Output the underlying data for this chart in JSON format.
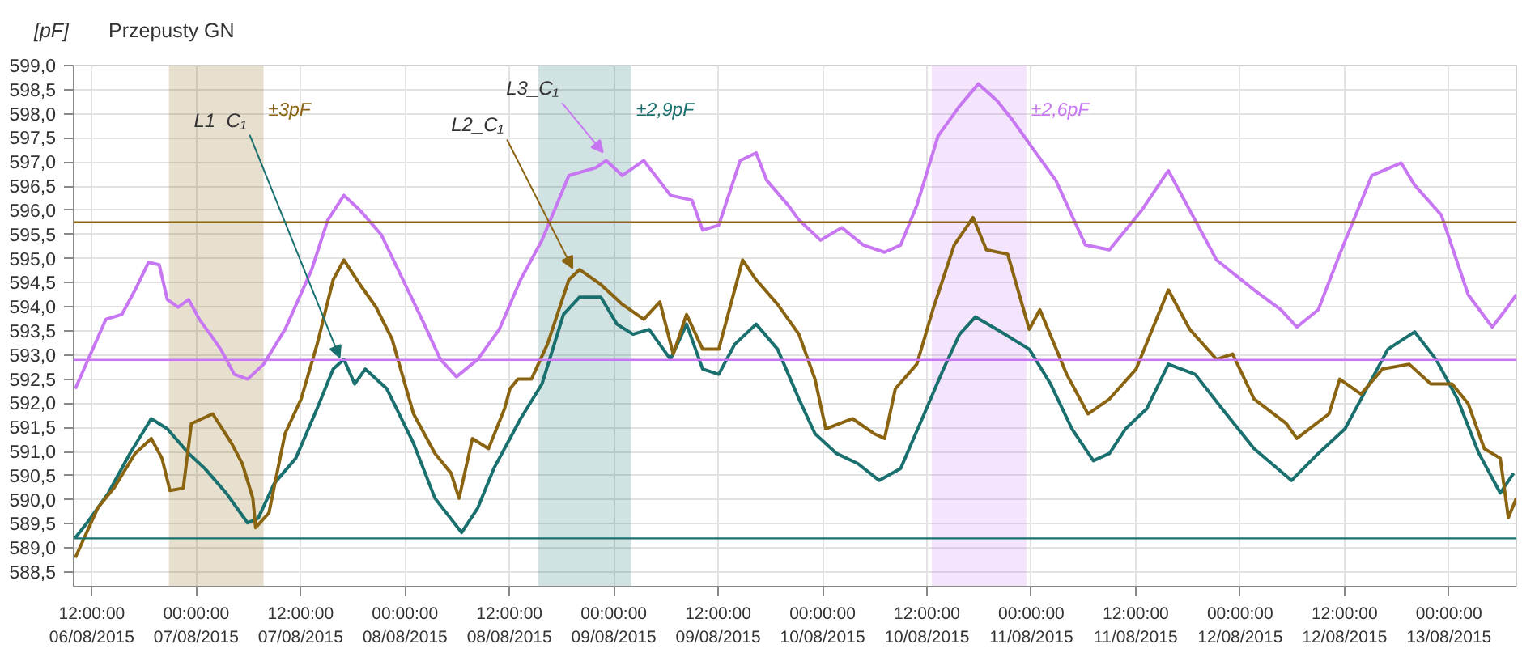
{
  "chart_data": {
    "type": "line",
    "title": "Przepusty GN",
    "ylabel": "[pF]",
    "xlim": [
      "2015-08-06T09:55",
      "2015-08-13T07:45"
    ],
    "ylim": [
      588.2,
      599.0
    ],
    "xticks": [
      {
        "value": "2015-08-06T12:00",
        "label": "12:00:00\n06/08/2015"
      },
      {
        "value": "2015-08-07T00:00",
        "label": "00:00:00\n07/08/2015"
      },
      {
        "value": "2015-08-07T12:00",
        "label": "12:00:00\n07/08/2015"
      },
      {
        "value": "2015-08-08T00:00",
        "label": "00:00:00\n08/08/2015"
      },
      {
        "value": "2015-08-08T12:00",
        "label": "12:00:00\n08/08/2015"
      },
      {
        "value": "2015-08-09T00:00",
        "label": "00:00:00\n09/08/2015"
      },
      {
        "value": "2015-08-09T12:00",
        "label": "12:00:00\n09/08/2015"
      },
      {
        "value": "2015-08-10T00:00",
        "label": "00:00:00\n10/08/2015"
      },
      {
        "value": "2015-08-10T12:00",
        "label": "12:00:00\n10/08/2015"
      },
      {
        "value": "2015-08-11T00:00",
        "label": "00:00:00\n11/08/2015"
      },
      {
        "value": "2015-08-11T12:00",
        "label": "12:00:00\n11/08/2015"
      },
      {
        "value": "2015-08-12T00:00",
        "label": "00:00:00\n12/08/2015"
      },
      {
        "value": "2015-08-12T12:00",
        "label": "12:00:00\n12/08/2015"
      },
      {
        "value": "2015-08-13T00:00",
        "label": "00:00:00\n13/08/2015"
      }
    ],
    "yticks": [
      {
        "value": 588.5,
        "label": "588,5"
      },
      {
        "value": 589.0,
        "label": "589,0"
      },
      {
        "value": 589.5,
        "label": "589,5"
      },
      {
        "value": 590.0,
        "label": "590,0"
      },
      {
        "value": 590.5,
        "label": "590,5"
      },
      {
        "value": 591.0,
        "label": "591,0"
      },
      {
        "value": 591.5,
        "label": "591,5"
      },
      {
        "value": 592.0,
        "label": "592,0"
      },
      {
        "value": 592.5,
        "label": "592,5"
      },
      {
        "value": 593.0,
        "label": "593,0"
      },
      {
        "value": 593.5,
        "label": "593,5"
      },
      {
        "value": 594.0,
        "label": "594,0"
      },
      {
        "value": 594.5,
        "label": "594,5"
      },
      {
        "value": 595.0,
        "label": "595,0"
      },
      {
        "value": 595.5,
        "label": "595,5"
      },
      {
        "value": 596.0,
        "label": "596,0"
      },
      {
        "value": 596.5,
        "label": "596,5"
      },
      {
        "value": 597.0,
        "label": "597,0"
      },
      {
        "value": 597.5,
        "label": "597,5"
      },
      {
        "value": 598.0,
        "label": "598,0"
      },
      {
        "value": 598.5,
        "label": "598,5"
      },
      {
        "value": 599.0,
        "label": "599,0"
      }
    ],
    "grid": true,
    "series": [
      {
        "color": "#19706e",
        "x": [
          "2015-08-06T10:06",
          "2015-08-06T11:27",
          "2015-08-06T13:54",
          "2015-08-06T16:23",
          "2015-08-06T18:50",
          "2015-08-06T20:41",
          "2015-08-06T23:08",
          "2015-08-07T00:59",
          "2015-08-07T03:27",
          "2015-08-07T05:55",
          "2015-08-07T07:08",
          "2015-08-07T08:59",
          "2015-08-07T11:27",
          "2015-08-07T13:54",
          "2015-08-07T15:45",
          "2015-08-07T16:59",
          "2015-08-07T18:13",
          "2015-08-07T19:26",
          "2015-08-07T21:55",
          "2015-08-08T00:59",
          "2015-08-08T03:27",
          "2015-08-08T06:31",
          "2015-08-08T08:22",
          "2015-08-08T10:13",
          "2015-08-08T12:04",
          "2015-08-08T13:17",
          "2015-08-08T15:45",
          "2015-08-08T18:13",
          "2015-08-08T20:04",
          "2015-08-08T22:31",
          "2015-08-09T00:22",
          "2015-08-09T02:13",
          "2015-08-09T04:04",
          "2015-08-09T06:31",
          "2015-08-09T08:22",
          "2015-08-09T10:13",
          "2015-08-09T12:04",
          "2015-08-09T13:54",
          "2015-08-09T16:22",
          "2015-08-09T18:50",
          "2015-08-09T21:17",
          "2015-08-09T23:08",
          "2015-08-10T01:36",
          "2015-08-10T04:04",
          "2015-08-10T06:31",
          "2015-08-10T08:59",
          "2015-08-10T11:27",
          "2015-08-10T13:54",
          "2015-08-10T15:45",
          "2015-08-10T17:35",
          "2015-08-10T20:04",
          "2015-08-10T23:46",
          "2015-08-11T02:13",
          "2015-08-11T04:40",
          "2015-08-11T07:08",
          "2015-08-11T08:59",
          "2015-08-11T10:50",
          "2015-08-11T13:17",
          "2015-08-11T15:45",
          "2015-08-11T18:50",
          "2015-08-11T21:55",
          "2015-08-12T01:36",
          "2015-08-12T05:54",
          "2015-08-12T08:59",
          "2015-08-12T12:03",
          "2015-08-12T15:08",
          "2015-08-12T16:59",
          "2015-08-12T20:04",
          "2015-08-12T22:31",
          "2015-08-13T00:59",
          "2015-08-13T03:27",
          "2015-08-13T05:54",
          "2015-08-13T07:26"
        ],
        "values": [
          589.21,
          589.52,
          590.14,
          590.96,
          591.68,
          591.47,
          590.96,
          590.65,
          590.14,
          589.52,
          589.62,
          590.34,
          590.86,
          591.89,
          592.71,
          592.91,
          592.4,
          592.71,
          592.3,
          591.17,
          590.03,
          589.32,
          589.83,
          590.65,
          591.27,
          591.68,
          592.4,
          593.84,
          594.2,
          594.2,
          593.64,
          593.43,
          593.53,
          592.91,
          593.64,
          592.71,
          592.6,
          593.22,
          593.64,
          593.12,
          592.09,
          591.37,
          590.96,
          590.75,
          590.4,
          590.65,
          591.68,
          592.71,
          593.43,
          593.79,
          593.53,
          593.12,
          592.4,
          591.47,
          590.81,
          590.96,
          591.47,
          591.89,
          592.81,
          592.6,
          591.89,
          591.06,
          590.4,
          590.96,
          591.47,
          592.5,
          593.12,
          593.48,
          592.91,
          592.09,
          590.96,
          590.14,
          590.55
        ]
      },
      {
        "color": "#8a6410",
        "x": [
          "2015-08-06T10:06",
          "2015-08-06T12:41",
          "2015-08-06T14:32",
          "2015-08-06T16:59",
          "2015-08-06T18:50",
          "2015-08-06T20:04",
          "2015-08-06T20:59",
          "2015-08-06T22:31",
          "2015-08-06T23:27",
          "2015-08-07T01:54",
          "2015-08-07T04:04",
          "2015-08-07T05:18",
          "2015-08-07T06:31",
          "2015-08-07T06:50",
          "2015-08-07T08:22",
          "2015-08-07T10:13",
          "2015-08-07T12:04",
          "2015-08-07T13:54",
          "2015-08-07T15:45",
          "2015-08-07T16:59",
          "2015-08-07T18:50",
          "2015-08-07T20:41",
          "2015-08-07T22:31",
          "2015-08-08T00:59",
          "2015-08-08T03:27",
          "2015-08-08T05:18",
          "2015-08-08T06:13",
          "2015-08-08T07:45",
          "2015-08-08T09:36",
          "2015-08-08T11:27",
          "2015-08-08T12:04",
          "2015-08-08T12:59",
          "2015-08-08T14:32",
          "2015-08-08T16:22",
          "2015-08-08T18:50",
          "2015-08-08T20:04",
          "2015-08-08T22:31",
          "2015-08-09T00:59",
          "2015-08-09T03:27",
          "2015-08-09T05:18",
          "2015-08-09T06:50",
          "2015-08-09T08:22",
          "2015-08-09T10:13",
          "2015-08-09T12:04",
          "2015-08-09T14:49",
          "2015-08-09T16:22",
          "2015-08-09T18:50",
          "2015-08-09T21:17",
          "2015-08-09T23:08",
          "2015-08-10T00:22",
          "2015-08-10T03:27",
          "2015-08-10T05:55",
          "2015-08-10T07:08",
          "2015-08-10T08:22",
          "2015-08-10T10:50",
          "2015-08-10T12:41",
          "2015-08-10T15:08",
          "2015-08-10T17:18",
          "2015-08-10T18:50",
          "2015-08-10T21:17",
          "2015-08-10T23:46",
          "2015-08-11T00:59",
          "2015-08-11T04:04",
          "2015-08-11T06:31",
          "2015-08-11T08:59",
          "2015-08-11T12:03",
          "2015-08-11T15:45",
          "2015-08-11T18:13",
          "2015-08-11T21:17",
          "2015-08-11T23:08",
          "2015-08-12T01:36",
          "2015-08-12T05:18",
          "2015-08-12T06:31",
          "2015-08-12T10:13",
          "2015-08-12T11:27",
          "2015-08-12T13:54",
          "2015-08-12T16:22",
          "2015-08-12T19:26",
          "2015-08-12T21:55",
          "2015-08-13T00:22",
          "2015-08-13T02:13",
          "2015-08-13T04:04",
          "2015-08-13T05:54",
          "2015-08-13T06:50",
          "2015-08-13T07:45"
        ],
        "values": [
          588.8,
          589.83,
          590.24,
          590.96,
          591.27,
          590.86,
          590.19,
          590.24,
          591.58,
          591.78,
          591.17,
          590.75,
          590.03,
          589.42,
          589.73,
          591.37,
          592.09,
          593.22,
          594.56,
          594.97,
          594.46,
          593.99,
          593.33,
          591.78,
          590.96,
          590.55,
          590.03,
          591.27,
          591.06,
          591.89,
          592.3,
          592.5,
          592.5,
          593.22,
          594.56,
          594.77,
          594.46,
          594.05,
          593.74,
          594.1,
          593.02,
          593.84,
          593.12,
          593.12,
          594.97,
          594.56,
          594.05,
          593.43,
          592.5,
          591.47,
          591.68,
          591.37,
          591.27,
          592.3,
          592.81,
          593.94,
          595.28,
          595.85,
          595.18,
          595.09,
          593.53,
          593.94,
          592.6,
          591.78,
          592.09,
          592.71,
          594.35,
          593.53,
          592.91,
          593.02,
          592.09,
          591.58,
          591.27,
          591.78,
          592.5,
          592.19,
          592.71,
          592.81,
          592.4,
          592.4,
          591.99,
          591.06,
          590.86,
          589.63,
          590.03
        ]
      },
      {
        "color": "#c877f2",
        "x": [
          "2015-08-06T10:06",
          "2015-08-06T13:37",
          "2015-08-06T15:27",
          "2015-08-06T16:59",
          "2015-08-06T18:31",
          "2015-08-06T19:45",
          "2015-08-06T20:41",
          "2015-08-06T21:55",
          "2015-08-06T23:08",
          "2015-08-07T00:22",
          "2015-08-07T01:37",
          "2015-08-07T02:49",
          "2015-08-07T04:23",
          "2015-08-07T05:55",
          "2015-08-07T07:45",
          "2015-08-07T10:13",
          "2015-08-07T13:17",
          "2015-08-07T15:08",
          "2015-08-07T16:59",
          "2015-08-07T18:50",
          "2015-08-07T21:17",
          "2015-08-07T23:46",
          "2015-08-08T02:13",
          "2015-08-08T04:04",
          "2015-08-08T05:55",
          "2015-08-08T08:22",
          "2015-08-08T10:50",
          "2015-08-08T13:17",
          "2015-08-08T15:45",
          "2015-08-08T18:50",
          "2015-08-08T21:55",
          "2015-08-08T23:08",
          "2015-08-09T00:59",
          "2015-08-09T03:27",
          "2015-08-09T06:31",
          "2015-08-09T08:59",
          "2015-08-09T10:13",
          "2015-08-09T12:04",
          "2015-08-09T14:32",
          "2015-08-09T16:22",
          "2015-08-09T17:35",
          "2015-08-09T20:04",
          "2015-08-09T21:17",
          "2015-08-09T23:46",
          "2015-08-10T02:13",
          "2015-08-10T04:40",
          "2015-08-10T07:08",
          "2015-08-10T08:59",
          "2015-08-10T10:50",
          "2015-08-10T13:17",
          "2015-08-10T15:45",
          "2015-08-10T17:55",
          "2015-08-10T20:04",
          "2015-08-10T21:55",
          "2015-08-11T00:22",
          "2015-08-11T02:49",
          "2015-08-11T06:13",
          "2015-08-11T08:59",
          "2015-08-11T12:41",
          "2015-08-11T15:45",
          "2015-08-11T18:13",
          "2015-08-11T21:17",
          "2015-08-12T01:36",
          "2015-08-12T04:40",
          "2015-08-12T06:31",
          "2015-08-12T08:59",
          "2015-08-12T11:27",
          "2015-08-12T15:08",
          "2015-08-12T18:31",
          "2015-08-12T20:04",
          "2015-08-12T23:08",
          "2015-08-13T02:13",
          "2015-08-13T04:59",
          "2015-08-13T06:31",
          "2015-08-13T07:45"
        ],
        "values": [
          592.3,
          593.74,
          593.84,
          594.35,
          594.92,
          594.87,
          594.15,
          593.99,
          594.15,
          593.74,
          593.43,
          593.12,
          592.6,
          592.5,
          592.81,
          593.53,
          594.77,
          595.8,
          596.31,
          596.0,
          595.49,
          594.56,
          593.64,
          592.91,
          592.55,
          592.91,
          593.53,
          594.56,
          595.38,
          596.72,
          596.88,
          597.03,
          596.72,
          597.03,
          596.31,
          596.21,
          595.59,
          595.69,
          597.03,
          597.19,
          596.62,
          596.1,
          595.8,
          595.38,
          595.64,
          595.28,
          595.13,
          595.28,
          596.1,
          597.54,
          598.16,
          598.62,
          598.27,
          597.85,
          597.23,
          596.62,
          595.28,
          595.18,
          596.0,
          596.82,
          596.0,
          594.97,
          594.35,
          593.94,
          593.58,
          593.94,
          595.09,
          596.72,
          596.98,
          596.52,
          595.9,
          594.25,
          593.58,
          593.94,
          594.25
        ]
      }
    ],
    "bands": [
      {
        "axis": "x",
        "from": "2015-08-06T20:52",
        "to": "2015-08-07T07:45",
        "label": "±3pF",
        "color": "#8a6410"
      },
      {
        "axis": "x",
        "from": "2015-08-08T15:19",
        "to": "2015-08-09T02:02",
        "label": "±2,9pF",
        "color": "#19706e"
      },
      {
        "axis": "x",
        "from": "2015-08-10T12:33",
        "to": "2015-08-10T23:26",
        "label": "±2,6pF",
        "color": "#c877f2"
      }
    ],
    "ref_lines": [
      {
        "axis": "y",
        "value": 595.75,
        "color": "#8a6410"
      },
      {
        "axis": "y",
        "value": 589.2,
        "color": "#19706e"
      },
      {
        "axis": "y",
        "value": 592.9,
        "color": "#c877f2"
      }
    ],
    "annotations": [
      {
        "text": "L1_C₁",
        "x": "2015-08-07T16:30",
        "y": 592.95
      },
      {
        "text": "L2_C₁",
        "x": "2015-08-08T19:15",
        "y": 594.8
      },
      {
        "text": "L3_C₁",
        "x": "2015-08-08T22:45",
        "y": 597.2
      }
    ]
  }
}
